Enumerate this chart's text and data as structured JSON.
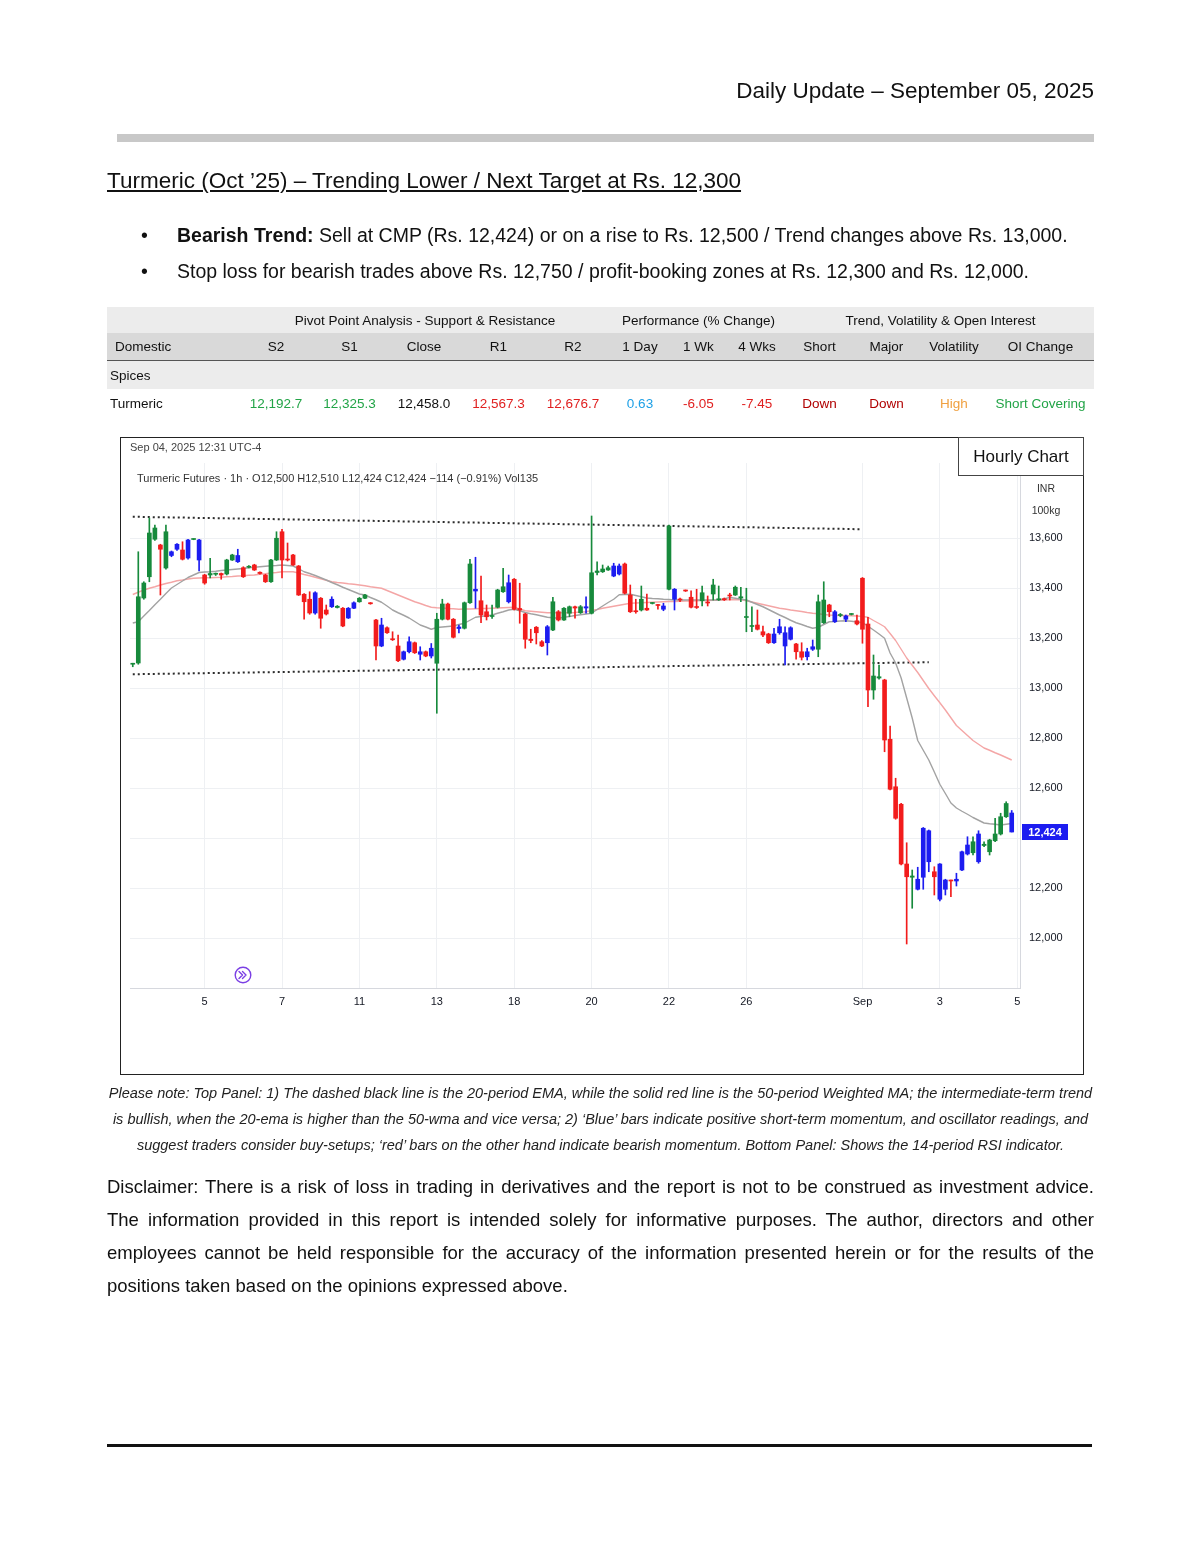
{
  "chart_data": [
    {
      "type": "other",
      "title": "Turmeric (Oct ’25) – Trending Lower / Next Target at Rs. 12,300",
      "annotations": [
        "Daily Update – September 05, 2025",
        "•",
        "Bearish Trend:",
        "Sell at CMP (Rs. 12,424) or on a rise to Rs. 12,500 / Trend changes above Rs. 13,000.",
        "•",
        "Stop loss for bearish trades above Rs. 12,750 / profit-booking zones at Rs. 12,300 and Rs. 12,000.",
        "Pivot Point Analysis - Support & Resistance",
        "Performance (% Change)",
        "Trend, Volatility & Open Interest",
        "Domestic",
        "S2",
        "S1",
        "Close",
        "R1",
        "R2",
        "1 Day",
        "1 Wk",
        "4 Wks",
        "Short",
        "Major",
        "Volatility",
        "OI Change",
        "Spices",
        "Turmeric",
        "12,192.7",
        "12,325.3",
        "12,458.0",
        "12,567.3",
        "12,676.7",
        "0.63",
        "-6.05",
        "-7.45",
        "Down",
        "Down",
        "High",
        "Short Covering"
      ]
    },
    {
      "type": "candlestick",
      "title": "Turmeric Futures · 1h · O12,500 H12,510 L12,424 C12,424 −114 (−0.91%) Vol135",
      "ylabel": "INR 100kg",
      "categories": [
        null,
        null,
        null,
        null,
        null,
        null,
        null,
        null,
        null,
        null,
        null,
        null,
        null,
        "5",
        null,
        null,
        null,
        null,
        null,
        null,
        null,
        null,
        null,
        null,
        null,
        null,
        null,
        "7",
        null,
        null,
        null,
        null,
        null,
        null,
        null,
        null,
        null,
        null,
        null,
        null,
        null,
        "11",
        null,
        null,
        null,
        null,
        null,
        null,
        null,
        null,
        null,
        null,
        null,
        null,
        null,
        "13",
        null,
        null,
        null,
        null,
        null,
        null,
        null,
        null,
        null,
        null,
        null,
        null,
        null,
        "18",
        null,
        null,
        null,
        null,
        null,
        null,
        null,
        null,
        null,
        null,
        null,
        null,
        null,
        "20",
        null,
        null,
        null,
        null,
        null,
        null,
        null,
        null,
        null,
        null,
        null,
        null,
        null,
        "22",
        null,
        null,
        null,
        null,
        null,
        null,
        null,
        null,
        null,
        null,
        null,
        null,
        null,
        "26",
        null,
        null,
        null,
        null,
        null,
        null,
        null,
        null,
        null,
        null,
        null,
        null,
        null,
        null,
        null,
        null,
        null,
        null,
        null,
        null,
        "Sep",
        null,
        null,
        null,
        null,
        null,
        null,
        null,
        null,
        null,
        null,
        null,
        null,
        null,
        "3",
        null,
        null,
        null,
        null,
        null,
        null,
        null,
        null,
        null,
        null,
        null,
        null,
        null,
        "5"
      ],
      "ohlc": [
        [
          13095,
          13099,
          13085,
          13095
        ],
        [
          13100,
          13545,
          13095,
          13365
        ],
        [
          13360,
          13425,
          13355,
          13420
        ],
        [
          13445,
          13680,
          13425,
          13620
        ],
        [
          13595,
          13652,
          13590,
          13640
        ],
        [
          13572,
          13575,
          13372,
          13555
        ],
        [
          13480,
          13652,
          13475,
          13625
        ],
        [
          13530,
          13548,
          13525,
          13545
        ],
        [
          13555,
          13578,
          13550,
          13575
        ],
        [
          13552,
          13585,
          13512,
          13515
        ],
        [
          13520,
          13595,
          13515,
          13592
        ],
        [
          13594,
          13597,
          13593,
          13596
        ],
        [
          13592,
          13595,
          13468,
          13512
        ],
        [
          13452,
          13455,
          13415,
          13420
        ],
        [
          13452,
          13519,
          13440,
          13458
        ],
        [
          13455,
          13460,
          13450,
          13458
        ],
        [
          13458,
          13460,
          13435,
          13452
        ],
        [
          13456,
          13515,
          13452,
          13512
        ],
        [
          13512,
          13535,
          13510,
          13532
        ],
        [
          13530,
          13555,
          13502,
          13505
        ],
        [
          13481,
          13485,
          13442,
          13445
        ],
        [
          13483,
          13490,
          13480,
          13487
        ],
        [
          13492,
          13495,
          13470,
          13472
        ],
        [
          13463,
          13465,
          13455,
          13458
        ],
        [
          13452,
          13455,
          13422,
          13425
        ],
        [
          13425,
          13515,
          13422,
          13512
        ],
        [
          13512,
          13625,
          13510,
          13599
        ],
        [
          13625,
          13635,
          13440,
          13512
        ],
        [
          13515,
          13580,
          13508,
          13512
        ],
        [
          13532,
          13535,
          13490,
          13492
        ],
        [
          13488,
          13490,
          13370,
          13372
        ],
        [
          13375,
          13378,
          13275,
          13345
        ],
        [
          13355,
          13385,
          13295,
          13300
        ],
        [
          13300,
          13385,
          13295,
          13381
        ],
        [
          13359,
          13362,
          13239,
          13279
        ],
        [
          13312,
          13332,
          13292,
          13296
        ],
        [
          13325,
          13365,
          13322,
          13355
        ],
        [
          13322,
          13330,
          13320,
          13327
        ],
        [
          13319,
          13322,
          13245,
          13248
        ],
        [
          13280,
          13322,
          13278,
          13319
        ],
        [
          13319,
          13345,
          13317,
          13341
        ],
        [
          13345,
          13362,
          13343,
          13359
        ],
        [
          13359,
          13375,
          13357,
          13372
        ],
        [
          13340,
          13342,
          13335,
          13337
        ],
        [
          13272,
          13275,
          13112,
          13168
        ],
        [
          13168,
          13279,
          13165,
          13252
        ],
        [
          13241,
          13245,
          13218,
          13221
        ],
        [
          13197,
          13225,
          13190,
          13193
        ],
        [
          13168,
          13212,
          13105,
          13109
        ],
        [
          13115,
          13148,
          13112,
          13145
        ],
        [
          13145,
          13205,
          13140,
          13185
        ],
        [
          13181,
          13184,
          13138,
          13141
        ],
        [
          13135,
          13165,
          13112,
          13145
        ],
        [
          13145,
          13148,
          13125,
          13128
        ],
        [
          13128,
          13178,
          13120,
          13159
        ],
        [
          13099,
          13299,
          12899,
          13275
        ],
        [
          13275,
          13355,
          13272,
          13336
        ],
        [
          13336,
          13340,
          13272,
          13275
        ],
        [
          13275,
          13278,
          13200,
          13203
        ],
        [
          13238,
          13252,
          13220,
          13244
        ],
        [
          13239,
          13344,
          13236,
          13341
        ],
        [
          13341,
          13515,
          13338,
          13496
        ],
        [
          13395,
          13523,
          13319,
          13388
        ],
        [
          13349,
          13448,
          13261,
          13292
        ],
        [
          13305,
          13332,
          13272,
          13285
        ],
        [
          13286,
          13332,
          13278,
          13290
        ],
        [
          13323,
          13395,
          13320,
          13392
        ],
        [
          13385,
          13479,
          13382,
          13405
        ],
        [
          13345,
          13452,
          13340,
          13421
        ],
        [
          13435,
          13438,
          13312,
          13315
        ],
        [
          13318,
          13419,
          13259,
          13312
        ],
        [
          13296,
          13299,
          13159,
          13195
        ],
        [
          13195,
          13235,
          13181,
          13190
        ],
        [
          13243,
          13246,
          13176,
          13221
        ],
        [
          13185,
          13190,
          13165,
          13168
        ],
        [
          13181,
          13250,
          13132,
          13245
        ],
        [
          13232,
          13363,
          13229,
          13345
        ],
        [
          13305,
          13310,
          13268,
          13272
        ],
        [
          13272,
          13322,
          13270,
          13319
        ],
        [
          13299,
          13328,
          13285,
          13325
        ],
        [
          13325,
          13328,
          13279,
          13320
        ],
        [
          13301,
          13330,
          13298,
          13325
        ],
        [
          13320,
          13365,
          13299,
          13325
        ],
        [
          13299,
          13688,
          13296,
          13461
        ],
        [
          13462,
          13505,
          13452,
          13468
        ],
        [
          13465,
          13492,
          13462,
          13476
        ],
        [
          13472,
          13488,
          13470,
          13481
        ],
        [
          13448,
          13499,
          13445,
          13488
        ],
        [
          13456,
          13496,
          13452,
          13488
        ],
        [
          13496,
          13500,
          13376,
          13379
        ],
        [
          13372,
          13412,
          13302,
          13305
        ],
        [
          13308,
          13355,
          13299,
          13305
        ],
        [
          13312,
          13408,
          13308,
          13355
        ],
        [
          13319,
          13376,
          13310,
          13312
        ],
        [
          13338,
          13342,
          13336,
          13340
        ],
        [
          13332,
          13335,
          13315,
          13330
        ],
        [
          13315,
          13339,
          13309,
          13328
        ],
        [
          13395,
          13652,
          13392,
          13648
        ],
        [
          13395,
          13398,
          13312,
          13355
        ],
        [
          13356,
          13360,
          13345,
          13352
        ],
        [
          13390,
          13392,
          13386,
          13388
        ],
        [
          13363,
          13389,
          13320,
          13323
        ],
        [
          13326,
          13395,
          13318,
          13322
        ],
        [
          13349,
          13408,
          13328,
          13381
        ],
        [
          13343,
          13368,
          13328,
          13340
        ],
        [
          13376,
          13435,
          13352,
          13412
        ],
        [
          13353,
          13408,
          13350,
          13357
        ],
        [
          13357,
          13360,
          13350,
          13353
        ],
        [
          13372,
          13379,
          13352,
          13368
        ],
        [
          13372,
          13408,
          13370,
          13403
        ],
        [
          13360,
          13403,
          13345,
          13365
        ],
        [
          13282,
          13399,
          13225,
          13286
        ],
        [
          13246,
          13325,
          13225,
          13250
        ],
        [
          13252,
          13312,
          13232,
          13235
        ],
        [
          13225,
          13248,
          13205,
          13212
        ],
        [
          13216,
          13219,
          13178,
          13181
        ],
        [
          13181,
          13239,
          13178,
          13216
        ],
        [
          13221,
          13275,
          13215,
          13245
        ],
        [
          13168,
          13245,
          13092,
          13221
        ],
        [
          13195,
          13245,
          13192,
          13241
        ],
        [
          13176,
          13179,
          13115,
          13145
        ],
        [
          13145,
          13181,
          13112,
          13123
        ],
        [
          13125,
          13159,
          13112,
          13145
        ],
        [
          13155,
          13192,
          13150,
          13165
        ],
        [
          13155,
          13372,
          13125,
          13345
        ],
        [
          13261,
          13425,
          13258,
          13352
        ],
        [
          13332,
          13335,
          13285,
          13305
        ],
        [
          13265,
          13310,
          13262,
          13305
        ],
        [
          13290,
          13298,
          13285,
          13294
        ],
        [
          13275,
          13292,
          13265,
          13288
        ],
        [
          13294,
          13298,
          13292,
          13296
        ],
        [
          13269,
          13292,
          13252,
          13256
        ],
        [
          13439,
          13442,
          13179,
          13235
        ],
        [
          13256,
          13283,
          12925,
          12992
        ],
        [
          12992,
          13132,
          12955,
          13048
        ],
        [
          13040,
          13092,
          13035,
          13045
        ],
        [
          13032,
          13035,
          12745,
          12792
        ],
        [
          12795,
          12848,
          12592,
          12595
        ],
        [
          12605,
          12639,
          12475,
          12479
        ],
        [
          12535,
          12539,
          12292,
          12296
        ],
        [
          12296,
          12381,
          11976,
          12245
        ],
        [
          12243,
          12272,
          12119,
          12248
        ],
        [
          12195,
          12283,
          12192,
          12235
        ],
        [
          12243,
          12442,
          12195,
          12439
        ],
        [
          12429,
          12432,
          12265,
          12305
        ],
        [
          12265,
          12285,
          12172,
          12245
        ],
        [
          12296,
          12298,
          12148,
          12155
        ],
        [
          12232,
          12235,
          12172,
          12195
        ],
        [
          12230,
          12232,
          12165,
          12228
        ],
        [
          12228,
          12259,
          12208,
          12235
        ],
        [
          12272,
          12348,
          12269,
          12345
        ],
        [
          12336,
          12405,
          12332,
          12372
        ],
        [
          12341,
          12405,
          12332,
          12385
        ],
        [
          12416,
          12429,
          12299,
          12305
        ],
        [
          12370,
          12385,
          12365,
          12375
        ],
        [
          12345,
          12395,
          12332,
          12392
        ],
        [
          12389,
          12479,
          12385,
          12416
        ],
        [
          12416,
          12499,
          12412,
          12485
        ],
        [
          12485,
          12545,
          12482,
          12538
        ],
        [
          12500,
          12510,
          12424,
          12424
        ],
        null
      ],
      "colors": [
        "#178a3c",
        "#178a3c",
        "#178a3c",
        "#178a3c",
        "#178a3c",
        "#f21c1c",
        "#178a3c",
        "#1c1cf0",
        "#1c1cf0",
        "#f21c1c",
        "#1c1cf0",
        "#178a3c",
        "#1c1cf0",
        "#f21c1c",
        "#178a3c",
        "#178a3c",
        "#f21c1c",
        "#178a3c",
        "#178a3c",
        "#1c1cf0",
        "#f21c1c",
        "#178a3c",
        "#f21c1c",
        "#f21c1c",
        "#f21c1c",
        "#178a3c",
        "#178a3c",
        "#f21c1c",
        "#f21c1c",
        "#f21c1c",
        "#f21c1c",
        "#f21c1c",
        "#f21c1c",
        "#1c1cf0",
        "#f21c1c",
        "#f21c1c",
        "#1c1cf0",
        "#178a3c",
        "#f21c1c",
        "#1c1cf0",
        "#1c1cf0",
        "#178a3c",
        "#178a3c",
        "#f21c1c",
        "#f21c1c",
        "#1c1cf0",
        "#f21c1c",
        "#f21c1c",
        "#f21c1c",
        "#1c1cf0",
        "#1c1cf0",
        "#f21c1c",
        "#1c1cf0",
        "#f21c1c",
        "#1c1cf0",
        "#178a3c",
        "#178a3c",
        "#f21c1c",
        "#f21c1c",
        "#1c1cf0",
        "#178a3c",
        "#178a3c",
        "#1c1cf0",
        "#f21c1c",
        "#f21c1c",
        "#178a3c",
        "#178a3c",
        "#178a3c",
        "#1c1cf0",
        "#f21c1c",
        "#f21c1c",
        "#f21c1c",
        "#f21c1c",
        "#f21c1c",
        "#f21c1c",
        "#1c1cf0",
        "#178a3c",
        "#f21c1c",
        "#178a3c",
        "#178a3c",
        "#f21c1c",
        "#178a3c",
        "#1c1cf0",
        "#178a3c",
        "#178a3c",
        "#178a3c",
        "#178a3c",
        "#1c1cf0",
        "#1c1cf0",
        "#f21c1c",
        "#f21c1c",
        "#f21c1c",
        "#178a3c",
        "#f21c1c",
        "#178a3c",
        "#f21c1c",
        "#1c1cf0",
        "#178a3c",
        "#1c1cf0",
        "#f21c1c",
        "#f21c1c",
        "#f21c1c",
        "#f21c1c",
        "#178a3c",
        "#f21c1c",
        "#178a3c",
        "#178a3c",
        "#f21c1c",
        "#f21c1c",
        "#178a3c",
        "#178a3c",
        "#178a3c",
        "#178a3c",
        "#f21c1c",
        "#f21c1c",
        "#f21c1c",
        "#1c1cf0",
        "#1c1cf0",
        "#1c1cf0",
        "#1c1cf0",
        "#f21c1c",
        "#f21c1c",
        "#1c1cf0",
        "#1c1cf0",
        "#178a3c",
        "#178a3c",
        "#f21c1c",
        "#1c1cf0",
        "#178a3c",
        "#1c1cf0",
        "#178a3c",
        "#f21c1c",
        "#f21c1c",
        "#f21c1c",
        "#178a3c",
        "#178a3c",
        "#f21c1c",
        "#f21c1c",
        "#f21c1c",
        "#f21c1c",
        "#f21c1c",
        "#178a3c",
        "#1c1cf0",
        "#1c1cf0",
        "#1c1cf0",
        "#f21c1c",
        "#1c1cf0",
        "#1c1cf0",
        "#f21c1c",
        "#1c1cf0",
        "#1c1cf0",
        "#1c1cf0",
        "#178a3c",
        "#1c1cf0",
        "#178a3c",
        "#178a3c",
        "#178a3c",
        "#178a3c",
        "#178a3c",
        "#1c1cf0",
        null
      ],
      "series": [
        {
          "type": "line",
          "color": "#a3a3a3",
          "line_style": "solid",
          "values": [
            13260,
            13265,
            13288,
            13310,
            13333,
            13355,
            13378,
            13400,
            13414,
            13428,
            13442,
            13452,
            13462,
            13464,
            13465,
            13467,
            13470,
            13472,
            13474,
            13476,
            13478,
            13481,
            13483,
            13485,
            13487,
            13489,
            13490,
            13492,
            13490,
            13488,
            13477,
            13465,
            13458,
            13450,
            13441,
            13432,
            13422,
            13413,
            13403,
            13394,
            13385,
            13376,
            13372,
            13362,
            13353,
            13343,
            13328,
            13312,
            13301,
            13291,
            13280,
            13266,
            13252,
            13244,
            13235,
            13242,
            13244,
            13246,
            13248,
            13254,
            13259,
            13271,
            13283,
            13286,
            13289,
            13292,
            13299,
            13305,
            13312,
            13315,
            13309,
            13302,
            13297,
            13293,
            13288,
            13283,
            13281,
            13279,
            13283,
            13286,
            13290,
            13293,
            13296,
            13299,
            13314,
            13328,
            13342,
            13355,
            13373,
            13374,
            13375,
            13370,
            13365,
            13360,
            13358,
            13357,
            13355,
            13354,
            13352,
            13352,
            13352,
            13352,
            13352,
            13352,
            13352,
            13352,
            13352,
            13357,
            13362,
            13359,
            13355,
            13352,
            13343,
            13334,
            13325,
            13314,
            13303,
            13292,
            13282,
            13271,
            13261,
            13254,
            13246,
            13239,
            13243,
            13254,
            13265,
            13266,
            13268,
            13269,
            13267,
            13264,
            13262,
            13247,
            13232,
            13216,
            13199,
            13140,
            13100,
            13040,
            12960,
            12880,
            12790,
            12751,
            12712,
            12664,
            12615,
            12578,
            12540,
            12520,
            12507,
            12495,
            12482,
            12471,
            12460,
            12457,
            12455,
            12452,
            12455,
            12458,
            null
          ]
        },
        {
          "type": "line",
          "color": "#f4a6a6",
          "line_style": "solid",
          "values": [
            13374,
            13383,
            13392,
            13399,
            13405,
            13412,
            13418,
            13423,
            13429,
            13432,
            13436,
            13439,
            13440,
            13441,
            13441,
            13442,
            13443,
            13445,
            13446,
            13448,
            13449,
            13451,
            13452,
            13455,
            13457,
            13460,
            13462,
            13465,
            13465,
            13465,
            13460,
            13454,
            13449,
            13443,
            13437,
            13431,
            13425,
            13422,
            13420,
            13417,
            13415,
            13412,
            13409,
            13405,
            13402,
            13399,
            13390,
            13381,
            13372,
            13363,
            13354,
            13345,
            13338,
            13330,
            13323,
            13321,
            13320,
            13318,
            13317,
            13315,
            13316,
            13316,
            13317,
            13318,
            13318,
            13319,
            13320,
            13321,
            13322,
            13323,
            13316,
            13309,
            13307,
            13305,
            13303,
            13301,
            13301,
            13301,
            13301,
            13301,
            13302,
            13304,
            13305,
            13310,
            13314,
            13319,
            13323,
            13327,
            13331,
            13335,
            13339,
            13340,
            13341,
            13342,
            13343,
            13344,
            13345,
            13346,
            13346,
            13347,
            13348,
            13348,
            13349,
            13350,
            13350,
            13351,
            13351,
            13352,
            13353,
            13353,
            13354,
            13349,
            13344,
            13339,
            13334,
            13329,
            13324,
            13319,
            13316,
            13312,
            13309,
            13306,
            13302,
            13299,
            13297,
            13294,
            13292,
            13291,
            13290,
            13290,
            13289,
            13288,
            13286,
            13283,
            13270,
            13258,
            13245,
            13218,
            13190,
            13155,
            13120,
            13091,
            13062,
            13030,
            12998,
            12969,
            12941,
            12912,
            12881,
            12850,
            12830,
            12810,
            12790,
            12775,
            12760,
            12751,
            12741,
            12732,
            12722,
            12712,
            null
          ]
        },
        {
          "type": "line",
          "color": "#2b2b2b",
          "line_style": "dotted",
          "values": [
            13685,
            13685,
            13684,
            13684,
            13683,
            13683,
            13683,
            13682,
            13682,
            13682,
            13681,
            13681,
            13680,
            13680,
            13680,
            13679,
            13679,
            13679,
            13678,
            13678,
            13677,
            13677,
            13677,
            13676,
            13676,
            13676,
            13675,
            13675,
            13674,
            13674,
            13674,
            13673,
            13673,
            13672,
            13672,
            13672,
            13671,
            13671,
            13671,
            13670,
            13670,
            13669,
            13669,
            13669,
            13668,
            13668,
            13668,
            13667,
            13667,
            13666,
            13666,
            13666,
            13665,
            13665,
            13665,
            13664,
            13664,
            13663,
            13663,
            13663,
            13662,
            13662,
            13662,
            13661,
            13661,
            13660,
            13660,
            13660,
            13659,
            13659,
            13658,
            13658,
            13658,
            13657,
            13657,
            13657,
            13656,
            13656,
            13655,
            13655,
            13655,
            13654,
            13654,
            13654,
            13653,
            13653,
            13652,
            13652,
            13652,
            13651,
            13651,
            13651,
            13650,
            13650,
            13649,
            13649,
            13649,
            13648,
            13648,
            13647,
            13647,
            13647,
            13646,
            13646,
            13646,
            13645,
            13645,
            13644,
            13644,
            13644,
            13643,
            13643,
            13643,
            13642,
            13642,
            13641,
            13641,
            13641,
            13640,
            13640,
            13640,
            13639,
            13639,
            13638,
            13638,
            13638,
            13637,
            13637,
            13637,
            13636,
            13636,
            13635,
            13635,
            null,
            null,
            null,
            null,
            null,
            null,
            null,
            null,
            null,
            null,
            null,
            null,
            null,
            null,
            null,
            null,
            null,
            null,
            null,
            null,
            null,
            null,
            null,
            null,
            null,
            null,
            null,
            null
          ]
        },
        {
          "type": "line",
          "color": "#2b2b2b",
          "line_style": "dotted",
          "values": [
            13055,
            13055,
            13056,
            13056,
            13056,
            13057,
            13057,
            13057,
            13058,
            13058,
            13058,
            13059,
            13059,
            13059,
            13060,
            13060,
            13060,
            13061,
            13061,
            13061,
            13062,
            13062,
            13062,
            13063,
            13063,
            13063,
            13064,
            13064,
            13064,
            13065,
            13065,
            13065,
            13066,
            13066,
            13066,
            13067,
            13067,
            13067,
            13068,
            13068,
            13068,
            13069,
            13069,
            13069,
            13070,
            13070,
            13070,
            13071,
            13071,
            13071,
            13072,
            13072,
            13072,
            13073,
            13073,
            13073,
            13074,
            13074,
            13074,
            13075,
            13075,
            13075,
            13076,
            13076,
            13076,
            13077,
            13077,
            13077,
            13078,
            13078,
            13078,
            13079,
            13079,
            13079,
            13080,
            13080,
            13080,
            13081,
            13081,
            13081,
            13082,
            13082,
            13082,
            13083,
            13083,
            13083,
            13084,
            13084,
            13084,
            13085,
            13085,
            13085,
            13086,
            13086,
            13086,
            13087,
            13087,
            13087,
            13088,
            13088,
            13088,
            13089,
            13089,
            13089,
            13090,
            13090,
            13090,
            13091,
            13091,
            13091,
            13092,
            13092,
            13092,
            13093,
            13093,
            13093,
            13094,
            13094,
            13094,
            13095,
            13095,
            13095,
            13096,
            13096,
            13096,
            13097,
            13097,
            13097,
            13098,
            13098,
            13098,
            13099,
            13099,
            13099,
            13100,
            13100,
            13100,
            13101,
            13101,
            13101,
            13102,
            13102,
            13102,
            13103,
            13103,
            null,
            null,
            null,
            null,
            null,
            null,
            null,
            null,
            null,
            null,
            null,
            null,
            null,
            null,
            null,
            null
          ]
        }
      ],
      "ylim": [
        11800,
        13900
      ],
      "yticks": [
        {
          "value": 12000,
          "label": "12,000"
        },
        {
          "value": 12200,
          "label": "12,200"
        },
        {
          "value": 12400,
          "label": null
        },
        {
          "value": 12600,
          "label": "12,600"
        },
        {
          "value": 12800,
          "label": "12,800"
        },
        {
          "value": 13000,
          "label": "13,000"
        },
        {
          "value": 13200,
          "label": "13,200"
        },
        {
          "value": 13400,
          "label": "13,400"
        },
        {
          "value": 13600,
          "label": "13,600"
        }
      ],
      "grid": true,
      "marker": "none",
      "annotations": [
        "Sep 04, 2025 12:31 UTC-4",
        "Hourly Chart",
        "12,424",
        "Please note: Top Panel: 1) The dashed black line is the 20-period EMA, while the solid red line is the 50-period Weighted MA; the intermediate-term trend is bullish, when the 20-ema is higher than the 50-wma and vice versa; 2) ‘Blue’ bars indicate positive short-term momentum, and oscillator readings, and suggest traders consider buy-setups; ‘red’ bars on the other hand indicate bearish momentum. Bottom Panel: Shows the 14-period RSI indicator.",
        "Disclaimer: There is a risk of loss in trading in derivatives and the report is not to be construed as investment advice. The information provided in this report is intended solely for informative purposes. The author, directors and other employees cannot be held responsible for the accuracy of the information presented herein or for the results of the positions taken based on the opinions expressed above."
      ]
    }
  ]
}
